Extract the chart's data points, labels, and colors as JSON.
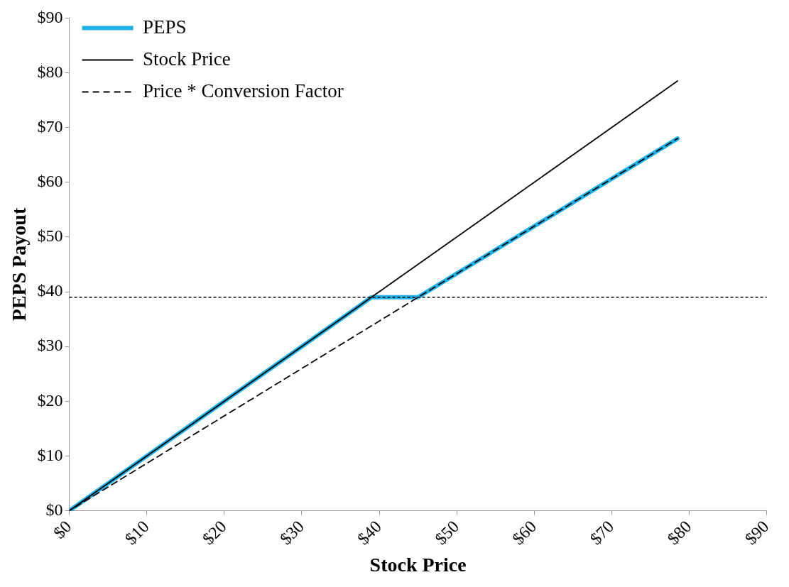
{
  "chart_data": {
    "type": "line",
    "xlabel": "Stock Price",
    "ylabel": "PEPS Payout",
    "xlim": [
      0,
      90
    ],
    "ylim": [
      0,
      90
    ],
    "xticks": [
      {
        "value": 0,
        "label": "$0"
      },
      {
        "value": 10,
        "label": "$10"
      },
      {
        "value": 20,
        "label": "$20"
      },
      {
        "value": 30,
        "label": "$30"
      },
      {
        "value": 40,
        "label": "$40"
      },
      {
        "value": 50,
        "label": "$50"
      },
      {
        "value": 60,
        "label": "$60"
      },
      {
        "value": 70,
        "label": "$70"
      },
      {
        "value": 80,
        "label": "$80"
      },
      {
        "value": 90,
        "label": "$90"
      }
    ],
    "yticks": [
      {
        "value": 0,
        "label": "$0"
      },
      {
        "value": 10,
        "label": "$10"
      },
      {
        "value": 20,
        "label": "$20"
      },
      {
        "value": 30,
        "label": "$30"
      },
      {
        "value": 40,
        "label": "$40"
      },
      {
        "value": 50,
        "label": "$50"
      },
      {
        "value": 60,
        "label": "$60"
      },
      {
        "value": 70,
        "label": "$70"
      },
      {
        "value": 80,
        "label": "$80"
      },
      {
        "value": 90,
        "label": "$90"
      }
    ],
    "grid": false,
    "legend": "top left",
    "marker": "none",
    "ref_lines": [
      {
        "axis": "y",
        "value": 39,
        "color": "#000000",
        "line_style": "dotted"
      }
    ],
    "series": [
      {
        "name": "PEPS",
        "color": "#1eb2ea",
        "line_style": "solid",
        "x": [
          0,
          39,
          45,
          78.5
        ],
        "values": [
          0,
          39,
          39,
          68
        ]
      },
      {
        "name": "Stock Price",
        "color": "#000000",
        "line_style": "solid",
        "x": [
          0,
          78.5
        ],
        "values": [
          0,
          78.5
        ]
      },
      {
        "name": "Price * Conversion Factor",
        "color": "#000000",
        "line_style": "dashed",
        "x": [
          0,
          78.5
        ],
        "values": [
          0,
          68
        ]
      }
    ]
  }
}
